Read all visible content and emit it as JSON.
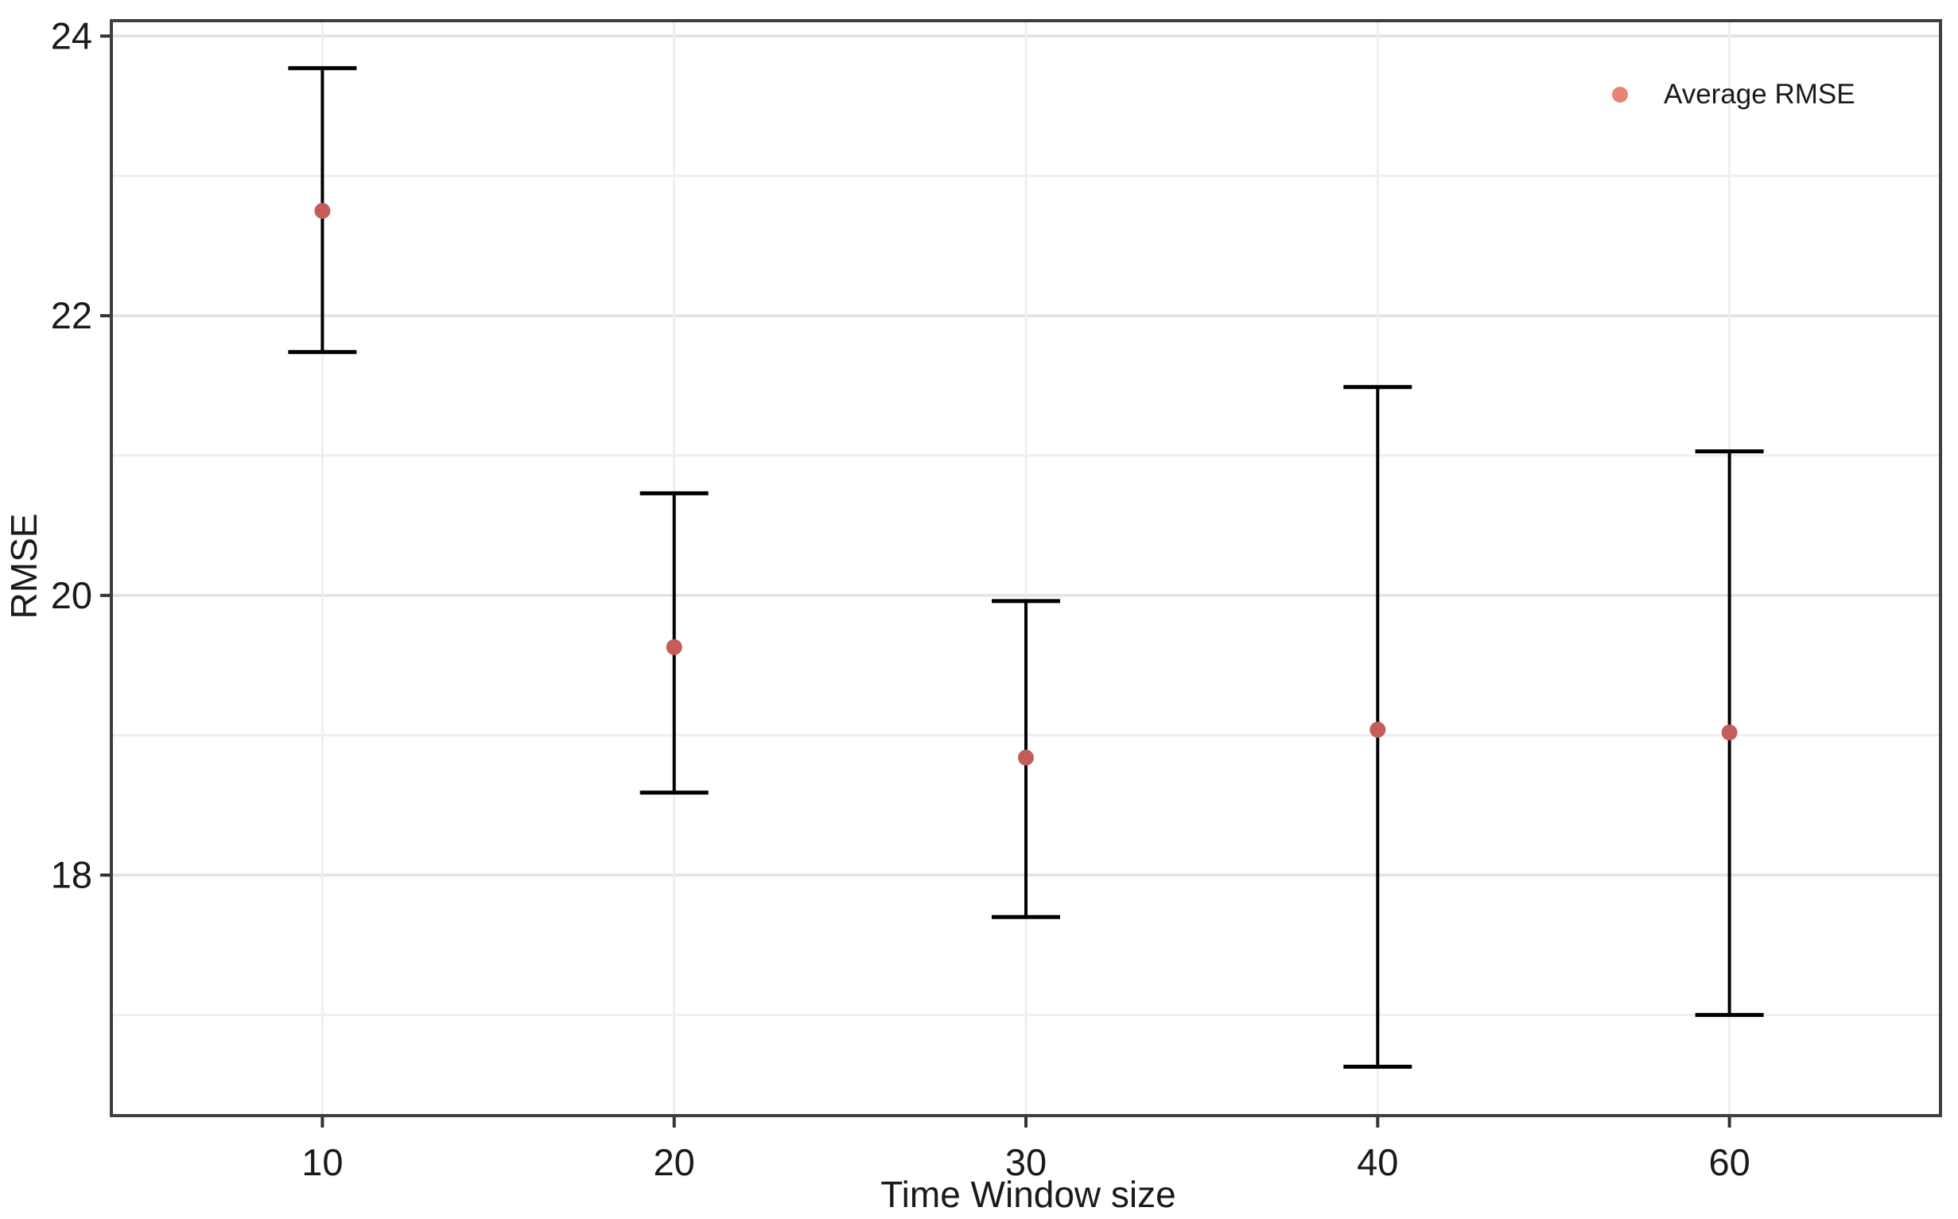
{
  "chart_data": {
    "type": "scatter",
    "title": "",
    "xlabel": "Time Window size",
    "ylabel": "RMSE",
    "categories": [
      "10",
      "20",
      "30",
      "40",
      "60"
    ],
    "series": [
      {
        "name": "Average RMSE",
        "means": [
          22.75,
          19.63,
          18.84,
          19.04,
          19.02
        ],
        "error_low": [
          21.74,
          18.59,
          17.7,
          16.63,
          17.0
        ],
        "error_high": [
          23.77,
          20.73,
          19.96,
          21.49,
          21.03
        ]
      }
    ],
    "y_axis": {
      "major_ticks": [
        18,
        20,
        22,
        24
      ],
      "minor_gridlines": [
        17,
        19,
        21,
        23
      ],
      "range": [
        16.28,
        24.11
      ]
    },
    "x_axis": {
      "tick_labels": [
        "10",
        "20",
        "30",
        "40",
        "60"
      ]
    },
    "legend": {
      "label": "Average RMSE",
      "position": "top-right-inside"
    },
    "grid": true,
    "colors": {
      "point": "#C45C59",
      "legend_marker": "#E8837A",
      "errorbar": "#000000",
      "grid_major": "#E3E3E3",
      "grid_minor": "#EFEFEF",
      "panel_border": "#3F3F3F",
      "tick": "#333333",
      "text": "#1A1A1A"
    }
  }
}
